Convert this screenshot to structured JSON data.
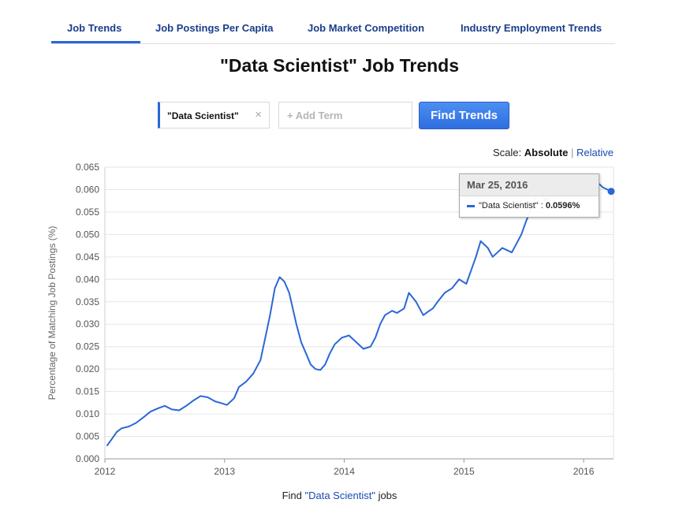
{
  "tabs": [
    {
      "label": "Job Trends",
      "active": true
    },
    {
      "label": "Job Postings Per Capita",
      "active": false
    },
    {
      "label": "Job Market Competition",
      "active": false
    },
    {
      "label": "Industry Employment Trends",
      "active": false
    }
  ],
  "page_title": "\"Data Scientist\" Job Trends",
  "search": {
    "term": "\"Data Scientist\"",
    "remove_icon": "×",
    "add_placeholder": "+ Add Term",
    "button_label": "Find Trends"
  },
  "scale": {
    "label": "Scale:",
    "selected": "Absolute",
    "separator": "|",
    "other": "Relative"
  },
  "tooltip": {
    "date": "Mar 25, 2016",
    "series": "\"Data Scientist\"",
    "value": "0.0596%"
  },
  "footer": {
    "prefix": "Find",
    "link": "\"Data Scientist\"",
    "suffix": "jobs"
  },
  "colors": {
    "line": "#2a67d6",
    "grid": "#e6e6e6",
    "link": "#1a4ab3"
  },
  "chart_data": {
    "type": "line",
    "ylabel": "Percentage of Matching Job Postings (%)",
    "xlabel": "",
    "xlim": [
      2012.0,
      2016.25
    ],
    "ylim": [
      0,
      0.065
    ],
    "xticks": [
      "2012",
      "2013",
      "2014",
      "2015",
      "2016"
    ],
    "xtick_values": [
      2012,
      2013,
      2014,
      2015,
      2016
    ],
    "yticks": [
      "0.000",
      "0.005",
      "0.010",
      "0.015",
      "0.020",
      "0.025",
      "0.030",
      "0.035",
      "0.040",
      "0.045",
      "0.050",
      "0.055",
      "0.060",
      "0.065"
    ],
    "grid": true,
    "series": [
      {
        "name": "\"Data Scientist\"",
        "x": [
          2012.02,
          2012.06,
          2012.1,
          2012.14,
          2012.2,
          2012.26,
          2012.32,
          2012.38,
          2012.44,
          2012.5,
          2012.56,
          2012.62,
          2012.68,
          2012.74,
          2012.8,
          2012.86,
          2012.92,
          2012.96,
          2013.02,
          2013.08,
          2013.12,
          2013.18,
          2013.24,
          2013.3,
          2013.34,
          2013.38,
          2013.42,
          2013.46,
          2013.5,
          2013.54,
          2013.6,
          2013.64,
          2013.68,
          2013.72,
          2013.76,
          2013.8,
          2013.84,
          2013.88,
          2013.92,
          2013.98,
          2014.04,
          2014.1,
          2014.16,
          2014.22,
          2014.26,
          2014.3,
          2014.34,
          2014.4,
          2014.44,
          2014.5,
          2014.54,
          2014.6,
          2014.66,
          2014.7,
          2014.74,
          2014.78,
          2014.84,
          2014.9,
          2014.96,
          2015.02,
          2015.06,
          2015.1,
          2015.14,
          2015.2,
          2015.24,
          2015.28,
          2015.32,
          2015.36,
          2015.4,
          2015.44,
          2015.48,
          2015.52,
          2015.56,
          2015.6,
          2015.64,
          2015.68,
          2015.72,
          2015.76,
          2015.8,
          2015.84,
          2015.88,
          2015.92,
          2015.96,
          2016.0,
          2016.04,
          2016.08,
          2016.12,
          2016.16,
          2016.2,
          2016.23
        ],
        "values": [
          0.003,
          0.0045,
          0.006,
          0.0068,
          0.0072,
          0.008,
          0.0092,
          0.0105,
          0.0112,
          0.0118,
          0.011,
          0.0108,
          0.0118,
          0.013,
          0.014,
          0.0137,
          0.0128,
          0.0125,
          0.012,
          0.0135,
          0.016,
          0.0172,
          0.019,
          0.022,
          0.027,
          0.032,
          0.038,
          0.0405,
          0.0395,
          0.037,
          0.03,
          0.026,
          0.0235,
          0.021,
          0.02,
          0.0198,
          0.021,
          0.0235,
          0.0255,
          0.027,
          0.0275,
          0.026,
          0.0245,
          0.025,
          0.027,
          0.03,
          0.032,
          0.033,
          0.0325,
          0.0335,
          0.037,
          0.035,
          0.032,
          0.0328,
          0.0335,
          0.035,
          0.037,
          0.038,
          0.04,
          0.039,
          0.042,
          0.045,
          0.0485,
          0.047,
          0.045,
          0.046,
          0.047,
          0.0465,
          0.046,
          0.048,
          0.05,
          0.053,
          0.0555,
          0.059,
          0.06,
          0.0575,
          0.0585,
          0.0605,
          0.061,
          0.0605,
          0.0595,
          0.06,
          0.0605,
          0.062,
          0.061,
          0.062,
          0.0615,
          0.0605,
          0.06,
          0.0596
        ]
      }
    ]
  }
}
